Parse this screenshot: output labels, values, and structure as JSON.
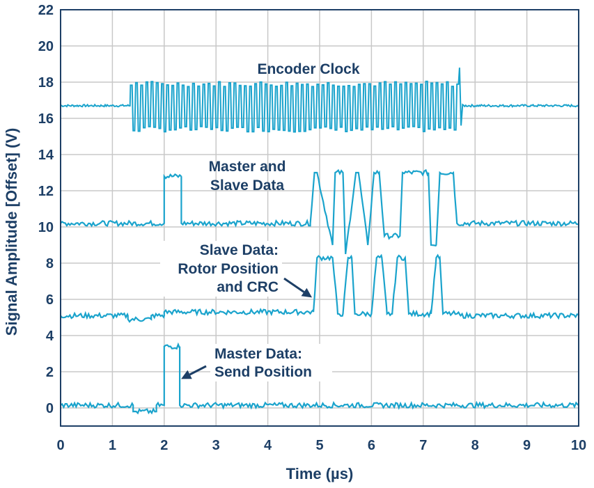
{
  "chart_data": {
    "type": "line",
    "title": "",
    "xlabel": "Time (µs)",
    "ylabel": "Signal Amplitude [Offset] (V)",
    "xlim": [
      0,
      10
    ],
    "ylim": [
      -1,
      22
    ],
    "x_ticks": [
      "0",
      "1",
      "2",
      "3",
      "4",
      "5",
      "6",
      "7",
      "8",
      "9",
      "10"
    ],
    "y_ticks": [
      "0",
      "2",
      "4",
      "6",
      "8",
      "10",
      "12",
      "14",
      "16",
      "18",
      "20",
      "22"
    ],
    "grid": true,
    "colors": {
      "signal": "#1aa3cc",
      "text": "#1d3f66",
      "grid": "#c8c8c8",
      "axis": "#1d3f66"
    },
    "series": [
      {
        "label": "Encoder Clock",
        "baseline": 16.7,
        "burst_start": 1.35,
        "burst_end": 7.68,
        "high": 17.9,
        "low": 15.4,
        "period": 0.1
      },
      {
        "label_lines": [
          "Master and",
          "Slave Data"
        ],
        "baseline": 10.2,
        "high": 12.95,
        "x": [
          0,
          2.0,
          2.0,
          2.33,
          2.33,
          4.82,
          4.9,
          4.95,
          5.25,
          5.3,
          5.45,
          5.5,
          5.7,
          5.75,
          5.93,
          6.05,
          6.15,
          6.25,
          6.55,
          6.6,
          7.1,
          7.15,
          7.25,
          7.32,
          7.58,
          7.65,
          10
        ],
        "y": [
          10.2,
          10.2,
          12.8,
          12.8,
          10.2,
          10.2,
          13.0,
          13.0,
          9.0,
          13.0,
          13.0,
          8.5,
          13.0,
          13.0,
          9.0,
          13.0,
          13.0,
          9.5,
          9.5,
          13.0,
          13.0,
          9.0,
          9.0,
          13.0,
          13.0,
          10.2,
          10.2
        ]
      },
      {
        "label_lines": [
          "Slave Data:",
          "Rotor Position",
          "and CRC"
        ],
        "baseline": 5.1,
        "high": 8.3,
        "x": [
          0,
          1.3,
          1.3,
          1.75,
          1.75,
          2.0,
          2.0,
          4.88,
          4.95,
          5.25,
          5.35,
          5.45,
          5.55,
          5.62,
          5.68,
          6.0,
          6.1,
          6.2,
          6.3,
          6.4,
          6.5,
          6.65,
          6.72,
          7.15,
          7.25,
          7.32,
          7.38,
          7.65,
          7.72,
          10
        ],
        "y": [
          5.1,
          5.1,
          4.9,
          4.9,
          5.1,
          5.1,
          5.3,
          5.3,
          8.3,
          8.3,
          5.2,
          5.2,
          8.3,
          8.3,
          5.2,
          5.2,
          8.3,
          8.3,
          5.2,
          5.2,
          8.3,
          8.3,
          5.2,
          5.2,
          8.3,
          8.3,
          5.2,
          5.2,
          5.1,
          5.1
        ],
        "arrow_target": [
          4.88,
          6.1
        ]
      },
      {
        "label_lines": [
          "Master Data:",
          "Send Position"
        ],
        "baseline": 0.15,
        "high": 3.4,
        "x": [
          0,
          1.4,
          1.4,
          1.85,
          1.85,
          2.0,
          2.0,
          2.3,
          2.3,
          10
        ],
        "y": [
          0.15,
          0.15,
          -0.2,
          -0.2,
          0.15,
          0.15,
          3.4,
          3.4,
          0.15,
          0.15
        ],
        "arrow_target": [
          2.3,
          1.6
        ]
      }
    ]
  }
}
